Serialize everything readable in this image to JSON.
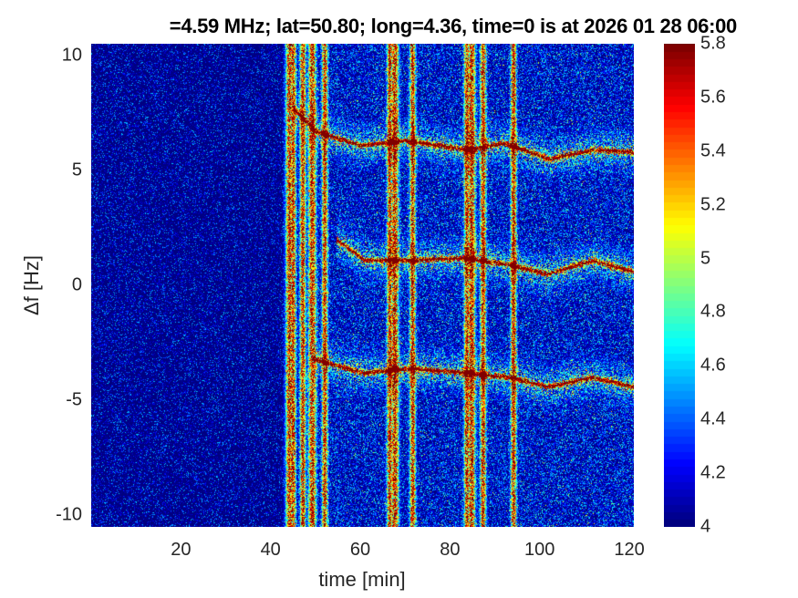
{
  "chart_data": {
    "type": "heatmap",
    "title": "=4.59 MHz;  lat=50.80; long=4.36, time=0 is at 2026 01 28 06:00",
    "xlabel": "time [min]",
    "ylabel": "Δf [Hz]",
    "xlim": [
      0,
      121
    ],
    "ylim": [
      -10.5,
      10.5
    ],
    "xticks": [
      20,
      40,
      60,
      80,
      100,
      120
    ],
    "yticks": [
      10,
      5,
      0,
      -5,
      -10
    ],
    "ytick_labels": [
      "10",
      "5",
      "0",
      "-5",
      "-10"
    ],
    "colormap": "jet",
    "clim": [
      4,
      5.8
    ],
    "colorbar_ticks": [
      "5.8",
      "5.6",
      "5.4",
      "5.2",
      "5",
      "4.8",
      "4.6",
      "4.4",
      "4.2",
      "4"
    ],
    "broadband_interference_times_min": [
      44.1,
      44.9,
      47.1,
      49.2,
      52.0,
      66.5,
      67.6,
      71.6,
      83.7,
      84.7,
      87.3,
      94.1
    ],
    "traces": [
      {
        "points": [
          [
            45,
            7.7
          ],
          [
            50,
            6.7
          ],
          [
            60,
            6.1
          ],
          [
            70,
            6.3
          ],
          [
            84,
            5.9
          ],
          [
            92,
            6.2
          ],
          [
            102,
            5.5
          ],
          [
            112,
            5.9
          ],
          [
            121,
            5.8
          ]
        ]
      },
      {
        "points": [
          [
            54.7,
            2.0
          ],
          [
            60.8,
            1.1
          ],
          [
            71,
            1.1
          ],
          [
            83.3,
            1.2
          ],
          [
            93.5,
            0.9
          ],
          [
            101.6,
            0.5
          ],
          [
            111.8,
            1.1
          ],
          [
            121,
            0.6
          ]
        ]
      },
      {
        "points": [
          [
            49.6,
            -3.2
          ],
          [
            60.8,
            -3.8
          ],
          [
            71,
            -3.6
          ],
          [
            83.3,
            -3.8
          ],
          [
            93.5,
            -4.0
          ],
          [
            101.6,
            -4.4
          ],
          [
            111.8,
            -4.0
          ],
          [
            121,
            -4.4
          ]
        ]
      }
    ]
  }
}
